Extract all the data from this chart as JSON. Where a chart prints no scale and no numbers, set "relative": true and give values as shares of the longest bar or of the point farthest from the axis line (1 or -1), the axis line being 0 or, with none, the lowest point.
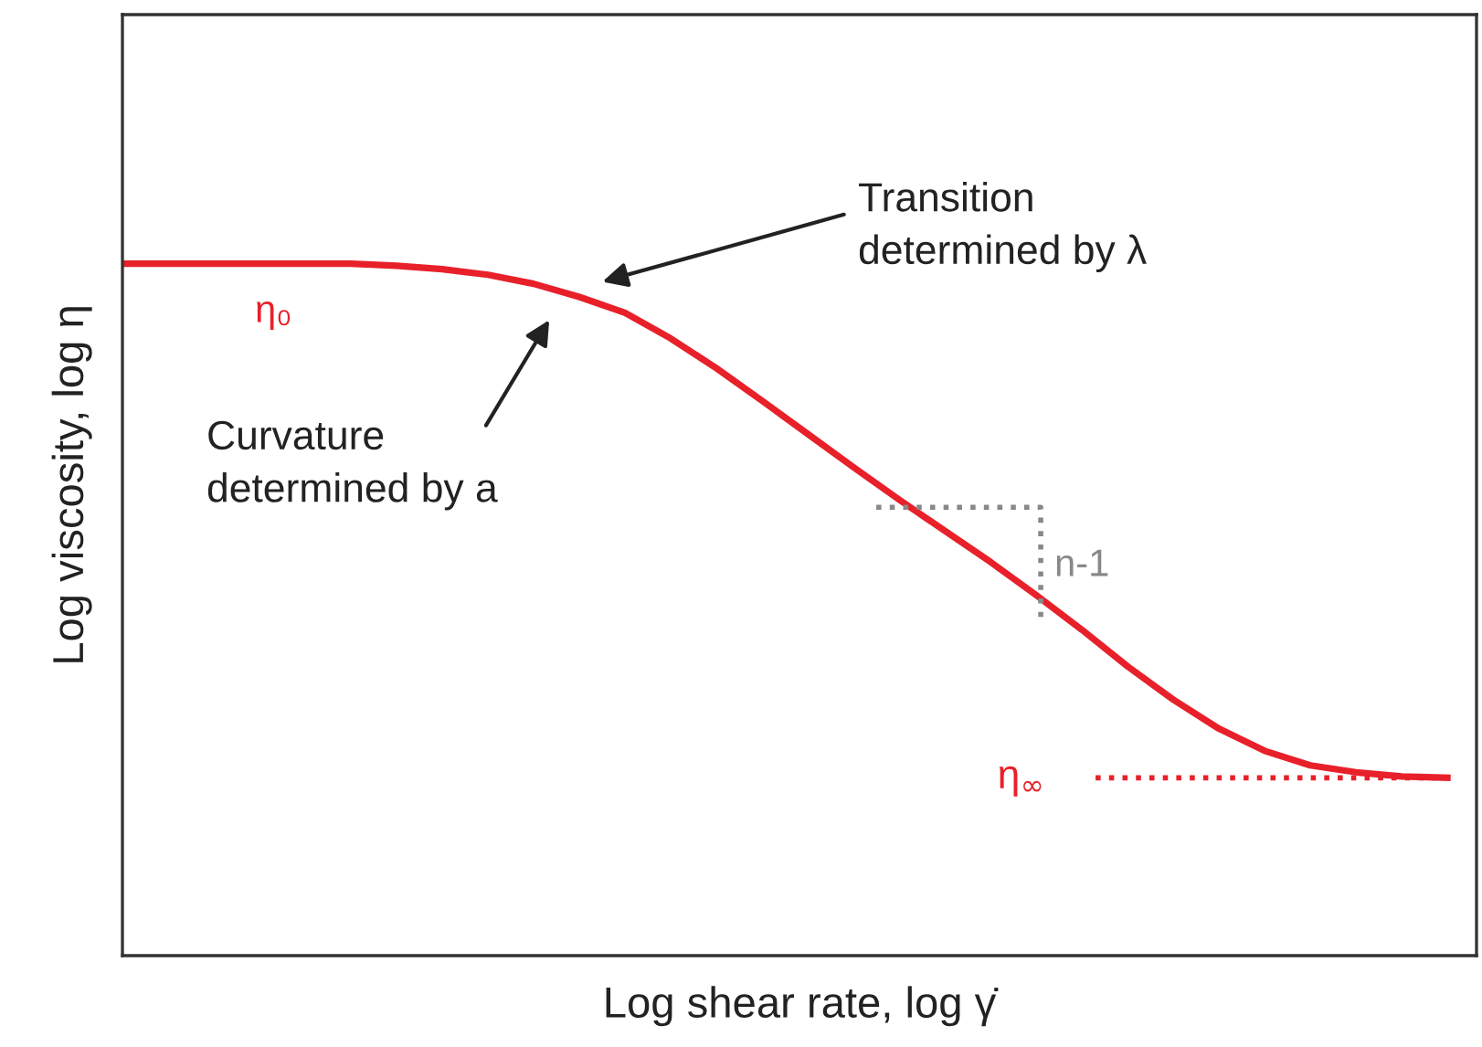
{
  "chart_data": {
    "type": "line",
    "relative": true,
    "xlabel": "Log shear rate, log γ̇",
    "ylabel": "Log viscosity, log η",
    "categories": [
      null,
      null,
      null,
      null,
      null,
      null,
      null,
      null,
      null,
      null,
      null,
      null,
      null,
      null,
      null,
      null,
      null,
      null,
      null,
      null,
      null,
      null,
      null,
      null,
      null,
      null,
      null,
      null,
      null,
      null
    ],
    "series": [
      {
        "color": "#e8202a",
        "values": [
          1.0,
          1.0,
          1.0,
          1.0,
          1.0,
          1.0,
          0.997,
          0.992,
          0.984,
          0.971,
          0.952,
          0.929,
          0.892,
          0.849,
          0.802,
          0.754,
          0.706,
          0.659,
          0.614,
          0.569,
          0.521,
          0.471,
          0.418,
          0.37,
          0.328,
          0.296,
          0.275,
          0.265,
          0.259,
          0.257
        ]
      }
    ],
    "annotations": [
      "Transition\ndetermined by λ",
      "Curvature\ndetermined by a",
      "η₀",
      "n-1"
    ],
    "ref_lines": [
      {
        "axis": "y",
        "value": 0.257,
        "label": "η$_{∞}$",
        "color": "#e8202a",
        "line_style": "dotted"
      }
    ],
    "legend": false,
    "tick_labels": false,
    "marker": "none",
    "line_style": "solid"
  }
}
